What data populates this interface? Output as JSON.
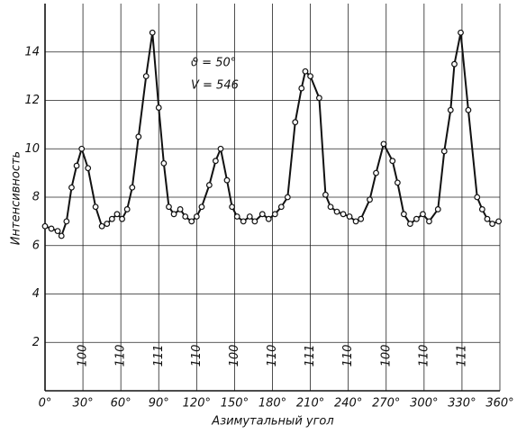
{
  "chart_data": {
    "type": "line",
    "ylabel": "Интенсивность",
    "xlabel": "Азимутальный угол",
    "annotations": [
      "ϑ = 50°",
      "V = 546"
    ],
    "peak_labels": {
      "x": [
        30,
        60,
        90,
        120,
        150,
        180,
        210,
        240,
        270,
        300,
        330
      ],
      "labels": [
        "100",
        "110",
        "111",
        "110",
        "100",
        "110",
        "111",
        "110",
        "100",
        "110",
        "111"
      ]
    },
    "x": [
      0,
      5,
      10,
      13,
      17,
      21,
      25,
      29,
      34,
      40,
      45,
      49,
      53,
      57,
      61,
      65,
      69,
      74,
      80,
      85,
      90,
      94,
      98,
      102,
      107,
      111,
      116,
      120,
      124,
      130,
      135,
      139,
      144,
      148,
      152,
      157,
      162,
      166,
      172,
      177,
      182,
      187,
      192,
      198,
      203,
      206,
      210,
      217,
      222,
      226,
      231,
      236,
      241,
      246,
      250,
      257,
      262,
      268,
      275,
      279,
      284,
      289,
      294,
      299,
      304,
      311,
      316,
      321,
      324,
      329,
      335,
      342,
      346,
      350,
      354,
      359
    ],
    "series": [
      {
        "color": "#111111",
        "values": [
          6.8,
          6.7,
          6.6,
          6.4,
          7.0,
          8.4,
          9.3,
          10.0,
          9.2,
          7.6,
          6.8,
          6.9,
          7.1,
          7.3,
          7.1,
          7.5,
          8.4,
          10.5,
          13.0,
          14.8,
          11.7,
          9.4,
          7.6,
          7.3,
          7.5,
          7.2,
          7.0,
          7.2,
          7.6,
          8.5,
          9.5,
          10.0,
          8.7,
          7.6,
          7.2,
          7.0,
          7.2,
          7.0,
          7.3,
          7.1,
          7.3,
          7.6,
          8.0,
          11.1,
          12.5,
          13.2,
          13.0,
          12.1,
          8.1,
          7.6,
          7.4,
          7.3,
          7.2,
          7.0,
          7.1,
          7.9,
          9.0,
          10.2,
          9.5,
          8.6,
          7.3,
          6.9,
          7.1,
          7.3,
          7.0,
          7.5,
          9.9,
          11.6,
          13.5,
          14.8,
          11.6,
          8.0,
          7.5,
          7.1,
          6.9,
          7.0
        ]
      }
    ],
    "xlim": [
      0,
      360
    ],
    "xticks": [
      {
        "value": 0,
        "label": "0°"
      },
      {
        "value": 30,
        "label": "30°"
      },
      {
        "value": 60,
        "label": "60°"
      },
      {
        "value": 90,
        "label": "90°"
      },
      {
        "value": 120,
        "label": "120°"
      },
      {
        "value": 150,
        "label": "150°"
      },
      {
        "value": 180,
        "label": "180°"
      },
      {
        "value": 210,
        "label": "210°"
      },
      {
        "value": 240,
        "label": "240°"
      },
      {
        "value": 270,
        "label": "270°"
      },
      {
        "value": 300,
        "label": "300°"
      },
      {
        "value": 330,
        "label": "330°"
      },
      {
        "value": 360,
        "label": "360°"
      }
    ],
    "ylim": [
      0,
      16
    ],
    "yticks": [
      2,
      4,
      6,
      8,
      10,
      12,
      14
    ],
    "grid": true
  }
}
